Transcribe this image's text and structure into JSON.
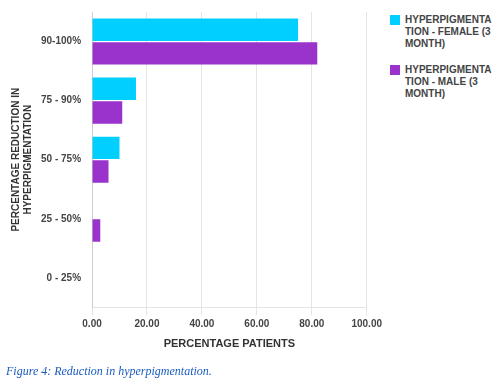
{
  "chart_data": {
    "type": "bar",
    "orientation": "horizontal",
    "categories": [
      "0 - 25%",
      "25 - 50%",
      "50 - 75%",
      "75 - 90%",
      "90-100%"
    ],
    "series": [
      {
        "name": "HYPERPIGMENTA\nTION - FEMALE (3\nMONTH)",
        "color": "#00CFFF",
        "values": [
          0,
          0,
          10,
          16,
          75
        ]
      },
      {
        "name": "HYPERPIGMENTA\nTION - MALE (3\nMONTH)",
        "color": "#9933CC",
        "values": [
          0,
          3,
          6,
          11,
          82
        ]
      }
    ],
    "xlabel": "PERCENTAGE PATIENTS",
    "ylabel": "PERCENTAGE REDUCTION IN\nHYPERPIGMENTATION",
    "xlim": [
      0,
      100
    ],
    "xticks": [
      {
        "value": 0,
        "label": "0.00"
      },
      {
        "value": 20.0,
        "label": "20.00"
      },
      {
        "value": 40.0,
        "label": "40.00"
      },
      {
        "value": 60.0,
        "label": "60.00"
      },
      {
        "value": 80.0,
        "label": "80.00"
      },
      {
        "value": 100.0,
        "label": "100.00"
      }
    ],
    "caption": "Figure 4: Reduction in hyperpigmentation.",
    "grid": true,
    "legend": "right"
  }
}
